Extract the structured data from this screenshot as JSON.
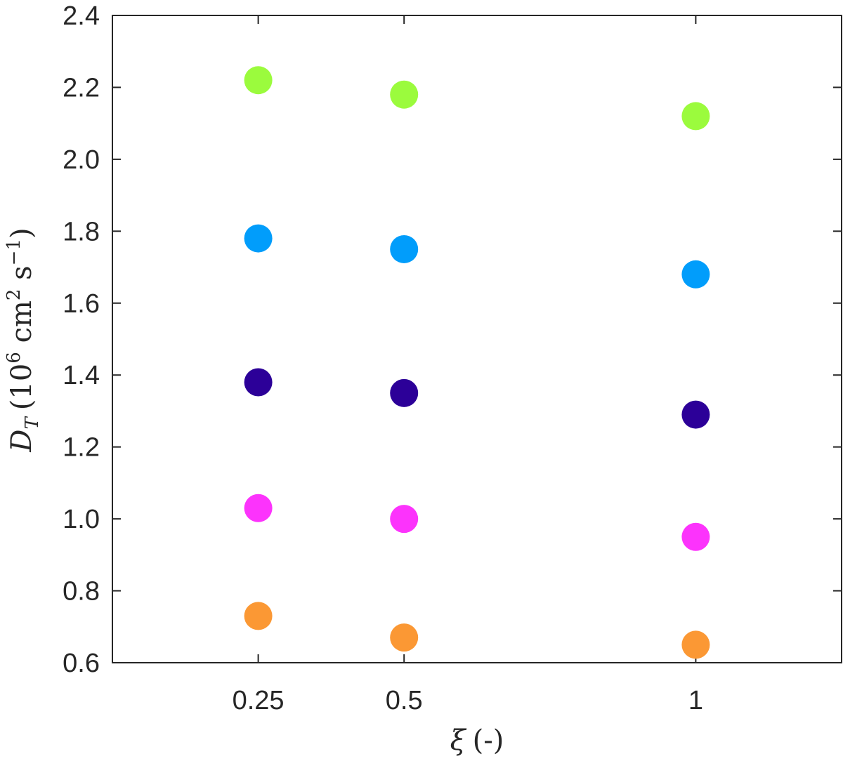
{
  "chart_data": {
    "type": "scatter",
    "title": "",
    "xlabel": {
      "symbol": "ξ",
      "unit": "(-)"
    },
    "ylabel": {
      "symbol": "D",
      "subscript": "T",
      "unit_pre": "(10",
      "unit_exp": "6",
      "unit_mid": " cm",
      "unit_exp2": "2",
      "unit_mid2": " s",
      "unit_exp3": "−1",
      "unit_post": ")"
    },
    "x_categories": [
      "0.25",
      "0.5",
      "1"
    ],
    "x_values": [
      0.25,
      0.5,
      1
    ],
    "xlim": [
      0,
      1.25
    ],
    "ylim": [
      0.6,
      2.4
    ],
    "yticks": [
      "0.6",
      "0.8",
      "1.0",
      "1.2",
      "1.4",
      "1.6",
      "1.8",
      "2.0",
      "2.2",
      "2.4"
    ],
    "ytick_values": [
      0.6,
      0.8,
      1.0,
      1.2,
      1.4,
      1.6,
      1.8,
      2.0,
      2.2,
      2.4
    ],
    "grid": false,
    "series": [
      {
        "color": "#9bfb3d",
        "values": [
          2.22,
          2.18,
          2.12
        ]
      },
      {
        "color": "#019dfb",
        "values": [
          1.78,
          1.75,
          1.68
        ]
      },
      {
        "color": "#2c0098",
        "values": [
          1.38,
          1.35,
          1.29
        ]
      },
      {
        "color": "#fc33fc",
        "values": [
          1.03,
          1.0,
          0.95
        ]
      },
      {
        "color": "#fb9834",
        "values": [
          0.73,
          0.67,
          0.65
        ]
      }
    ]
  }
}
